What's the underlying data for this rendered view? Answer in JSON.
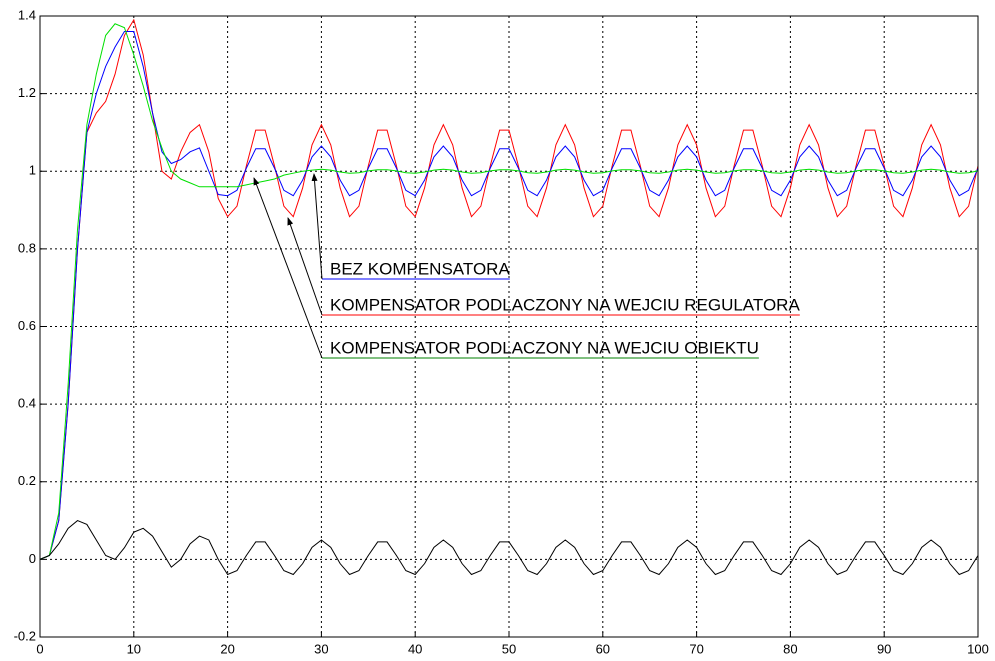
{
  "chart_data": {
    "type": "line",
    "xlim": [
      0,
      100
    ],
    "xticks": [
      0,
      10,
      20,
      30,
      40,
      50,
      60,
      70,
      80,
      90,
      100
    ],
    "ylim": [
      -0.2,
      1.4
    ],
    "yticks": [
      -0.2,
      0,
      0.2,
      0.4,
      0.6,
      0.8,
      1,
      1.2,
      1.4
    ],
    "grid": true,
    "x": [
      0,
      1,
      2,
      3,
      4,
      5,
      6,
      7,
      8,
      9,
      10,
      11,
      12,
      13,
      14,
      15,
      16,
      17,
      18,
      19,
      20,
      21,
      22,
      23,
      24,
      25,
      26,
      27,
      28,
      29,
      30,
      31,
      32,
      33,
      34,
      35,
      36,
      37,
      38,
      39,
      40,
      41,
      42,
      43,
      44,
      45,
      46,
      47,
      48,
      49,
      50,
      51,
      52,
      53,
      54,
      55,
      56,
      57,
      58,
      59,
      60,
      61,
      62,
      63,
      64,
      65,
      66,
      67,
      68,
      69,
      70,
      71,
      72,
      73,
      74,
      75,
      76,
      77,
      78,
      79,
      80,
      81,
      82,
      83,
      84,
      85,
      86,
      87,
      88,
      89,
      90,
      91,
      92,
      93,
      94,
      95,
      96,
      97,
      98,
      99,
      100
    ],
    "series": [
      {
        "color": "#ff0000",
        "values": [
          0,
          0.01,
          0.1,
          0.4,
          0.8,
          1.1,
          1.15,
          1.18,
          1.25,
          1.35,
          1.39,
          1.3,
          1.15,
          1.0,
          0.98,
          1.05,
          1.1,
          1.12,
          1.05,
          0.93,
          0.883,
          0.91,
          1.014,
          1.106,
          1.106,
          1.014,
          0.91,
          0.883,
          0.957,
          1.068,
          1.12,
          1.068,
          0.957,
          0.883,
          0.91,
          1.014,
          1.106,
          1.106,
          1.014,
          0.91,
          0.883,
          0.957,
          1.068,
          1.12,
          1.068,
          0.957,
          0.883,
          0.91,
          1.014,
          1.106,
          1.106,
          1.014,
          0.91,
          0.883,
          0.957,
          1.068,
          1.12,
          1.068,
          0.957,
          0.883,
          0.91,
          1.014,
          1.106,
          1.106,
          1.014,
          0.91,
          0.883,
          0.957,
          1.068,
          1.12,
          1.068,
          0.957,
          0.883,
          0.91,
          1.014,
          1.106,
          1.106,
          1.014,
          0.91,
          0.883,
          0.957,
          1.068,
          1.12,
          1.068,
          0.957,
          0.883,
          0.91,
          1.014,
          1.106,
          1.106,
          1.014,
          0.91,
          0.883,
          0.957,
          1.068,
          1.12,
          1.068,
          0.957,
          0.883,
          0.91,
          1.014
        ]
      },
      {
        "color": "#0000ff",
        "values": [
          0,
          0.01,
          0.1,
          0.4,
          0.8,
          1.1,
          1.2,
          1.27,
          1.32,
          1.36,
          1.36,
          1.27,
          1.15,
          1.05,
          1.02,
          1.03,
          1.05,
          1.06,
          1.0,
          0.94,
          0.937,
          0.951,
          1.008,
          1.058,
          1.058,
          1.008,
          0.951,
          0.937,
          0.977,
          1.037,
          1.065,
          1.037,
          0.977,
          0.937,
          0.951,
          1.008,
          1.058,
          1.058,
          1.008,
          0.951,
          0.937,
          0.977,
          1.037,
          1.065,
          1.037,
          0.977,
          0.937,
          0.951,
          1.008,
          1.058,
          1.058,
          1.008,
          0.951,
          0.937,
          0.977,
          1.037,
          1.065,
          1.037,
          0.977,
          0.937,
          0.951,
          1.008,
          1.058,
          1.058,
          1.008,
          0.951,
          0.937,
          0.977,
          1.037,
          1.065,
          1.037,
          0.977,
          0.937,
          0.951,
          1.008,
          1.058,
          1.058,
          1.008,
          0.951,
          0.937,
          0.977,
          1.037,
          1.065,
          1.037,
          0.977,
          0.937,
          0.951,
          1.008,
          1.058,
          1.058,
          1.008,
          0.951,
          0.937,
          0.977,
          1.037,
          1.065,
          1.037,
          0.977,
          0.937,
          0.951,
          1.008
        ]
      },
      {
        "color": "#00e000",
        "values": [
          0,
          0.01,
          0.12,
          0.45,
          0.85,
          1.12,
          1.25,
          1.35,
          1.38,
          1.37,
          1.3,
          1.22,
          1.13,
          1.06,
          1.0,
          0.98,
          0.97,
          0.96,
          0.96,
          0.96,
          0.96,
          0.96,
          0.965,
          0.97,
          0.975,
          0.98,
          0.99,
          0.995,
          1.0,
          1.003,
          1.005,
          1.003,
          0.998,
          0.995,
          0.996,
          1.001,
          1.004,
          1.004,
          1.001,
          0.996,
          0.995,
          0.998,
          1.003,
          1.005,
          1.003,
          0.998,
          0.995,
          0.996,
          1.001,
          1.004,
          1.004,
          1.001,
          0.996,
          0.995,
          0.998,
          1.003,
          1.005,
          1.003,
          0.998,
          0.995,
          0.996,
          1.001,
          1.004,
          1.004,
          1.001,
          0.996,
          0.995,
          0.998,
          1.003,
          1.005,
          1.003,
          0.998,
          0.995,
          0.996,
          1.001,
          1.004,
          1.004,
          1.001,
          0.996,
          0.995,
          0.998,
          1.003,
          1.005,
          1.003,
          0.998,
          0.995,
          0.996,
          1.001,
          1.004,
          1.004,
          1.001,
          0.996,
          0.995,
          0.998,
          1.003,
          1.005,
          1.003,
          0.998,
          0.995,
          0.996,
          1.001
        ]
      },
      {
        "color": "#000000",
        "values": [
          0,
          0.01,
          0.04,
          0.08,
          0.1,
          0.09,
          0.05,
          0.01,
          0.0,
          0.03,
          0.07,
          0.08,
          0.06,
          0.02,
          -0.02,
          0.0,
          0.04,
          0.06,
          0.05,
          0.0,
          -0.039,
          -0.029,
          0.01,
          0.045,
          0.045,
          0.01,
          -0.029,
          -0.039,
          -0.011,
          0.031,
          0.05,
          0.031,
          -0.011,
          -0.039,
          -0.029,
          0.01,
          0.045,
          0.045,
          0.01,
          -0.029,
          -0.039,
          -0.011,
          0.031,
          0.05,
          0.031,
          -0.011,
          -0.039,
          -0.029,
          0.01,
          0.045,
          0.045,
          0.01,
          -0.029,
          -0.039,
          -0.011,
          0.031,
          0.05,
          0.031,
          -0.011,
          -0.039,
          -0.029,
          0.01,
          0.045,
          0.045,
          0.01,
          -0.029,
          -0.039,
          -0.011,
          0.031,
          0.05,
          0.031,
          -0.011,
          -0.039,
          -0.029,
          0.01,
          0.045,
          0.045,
          0.01,
          -0.029,
          -0.039,
          -0.011,
          0.031,
          0.05,
          0.031,
          -0.011,
          -0.039,
          -0.029,
          0.01,
          0.045,
          0.045,
          0.01,
          -0.029,
          -0.039,
          -0.011,
          0.031,
          0.05,
          0.031,
          -0.011,
          -0.039,
          -0.029,
          0.01
        ]
      }
    ],
    "annotations": [
      {
        "text": "BEZ KOMPENSATORA",
        "color": "#0000ff"
      },
      {
        "text": "KOMPENSATOR PODLACZONY NA WEJCIU REGULATORA",
        "color": "#ff0000"
      },
      {
        "text": "KOMPENSATOR PODLACZONY NA WEJCIU OBIEKTU",
        "color": "#008000"
      }
    ]
  }
}
